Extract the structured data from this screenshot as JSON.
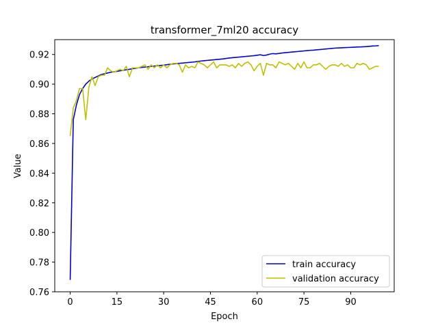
{
  "chart_data": {
    "type": "line",
    "title": "transformer_7ml20 accuracy",
    "xlabel": "Epoch",
    "ylabel": "Value",
    "xlim": [
      -4.95,
      103.95
    ],
    "ylim": [
      0.76,
      0.93
    ],
    "xticks": [
      0,
      15,
      30,
      45,
      60,
      75,
      90
    ],
    "yticks": [
      0.76,
      0.78,
      0.8,
      0.82,
      0.84,
      0.86,
      0.88,
      0.9,
      0.92
    ],
    "grid": false,
    "legend_position": "lower-right",
    "x": [
      0,
      1,
      2,
      3,
      4,
      5,
      6,
      7,
      8,
      9,
      10,
      11,
      12,
      13,
      14,
      15,
      16,
      17,
      18,
      19,
      20,
      21,
      22,
      23,
      24,
      25,
      26,
      27,
      28,
      29,
      30,
      31,
      32,
      33,
      34,
      35,
      36,
      37,
      38,
      39,
      40,
      41,
      42,
      43,
      44,
      45,
      46,
      47,
      48,
      49,
      50,
      51,
      52,
      53,
      54,
      55,
      56,
      57,
      58,
      59,
      60,
      61,
      62,
      63,
      64,
      65,
      66,
      67,
      68,
      69,
      70,
      71,
      72,
      73,
      74,
      75,
      76,
      77,
      78,
      79,
      80,
      81,
      82,
      83,
      84,
      85,
      86,
      87,
      88,
      89,
      90,
      91,
      92,
      93,
      94,
      95,
      96,
      97,
      98,
      99
    ],
    "series": [
      {
        "name": "train accuracy",
        "color": "#0000cc",
        "values": [
          0.768,
          0.876,
          0.886,
          0.893,
          0.897,
          0.9,
          0.902,
          0.9035,
          0.9045,
          0.9055,
          0.9065,
          0.907,
          0.9075,
          0.908,
          0.9083,
          0.9086,
          0.909,
          0.9093,
          0.9097,
          0.91,
          0.9104,
          0.9107,
          0.911,
          0.9113,
          0.9115,
          0.9117,
          0.912,
          0.9122,
          0.9124,
          0.9126,
          0.9128,
          0.9131,
          0.9134,
          0.9136,
          0.9138,
          0.914,
          0.9142,
          0.9144,
          0.9146,
          0.9148,
          0.915,
          0.9153,
          0.9156,
          0.9158,
          0.916,
          0.9162,
          0.9164,
          0.9166,
          0.9168,
          0.917,
          0.9173,
          0.9176,
          0.9178,
          0.918,
          0.9182,
          0.9184,
          0.9186,
          0.9188,
          0.919,
          0.9192,
          0.9195,
          0.9198,
          0.9193,
          0.9196,
          0.9202,
          0.9206,
          0.9204,
          0.9207,
          0.921,
          0.9212,
          0.9214,
          0.9216,
          0.9218,
          0.922,
          0.9222,
          0.9224,
          0.9226,
          0.9228,
          0.9229,
          0.9231,
          0.9233,
          0.9235,
          0.9237,
          0.9239,
          0.9241,
          0.9243,
          0.9244,
          0.9245,
          0.9246,
          0.9247,
          0.9248,
          0.9249,
          0.925,
          0.9251,
          0.9252,
          0.9253,
          0.9255,
          0.9257,
          0.9258,
          0.926
        ]
      },
      {
        "name": "validation accuracy",
        "color": "#bfbf00",
        "values": [
          0.865,
          0.884,
          0.889,
          0.897,
          0.897,
          0.876,
          0.898,
          0.905,
          0.899,
          0.905,
          0.906,
          0.906,
          0.911,
          0.909,
          0.908,
          0.909,
          0.91,
          0.909,
          0.912,
          0.905,
          0.911,
          0.911,
          0.911,
          0.912,
          0.913,
          0.91,
          0.913,
          0.911,
          0.913,
          0.911,
          0.913,
          0.911,
          0.913,
          0.914,
          0.914,
          0.913,
          0.908,
          0.913,
          0.911,
          0.912,
          0.911,
          0.915,
          0.914,
          0.913,
          0.911,
          0.913,
          0.915,
          0.911,
          0.913,
          0.913,
          0.913,
          0.912,
          0.913,
          0.911,
          0.914,
          0.912,
          0.914,
          0.915,
          0.913,
          0.909,
          0.912,
          0.914,
          0.906,
          0.914,
          0.913,
          0.913,
          0.911,
          0.915,
          0.914,
          0.913,
          0.914,
          0.912,
          0.91,
          0.914,
          0.911,
          0.915,
          0.911,
          0.911,
          0.913,
          0.913,
          0.914,
          0.912,
          0.91,
          0.912,
          0.913,
          0.913,
          0.912,
          0.914,
          0.912,
          0.913,
          0.911,
          0.911,
          0.914,
          0.913,
          0.914,
          0.913,
          0.91,
          0.911,
          0.912,
          0.912
        ]
      }
    ]
  }
}
